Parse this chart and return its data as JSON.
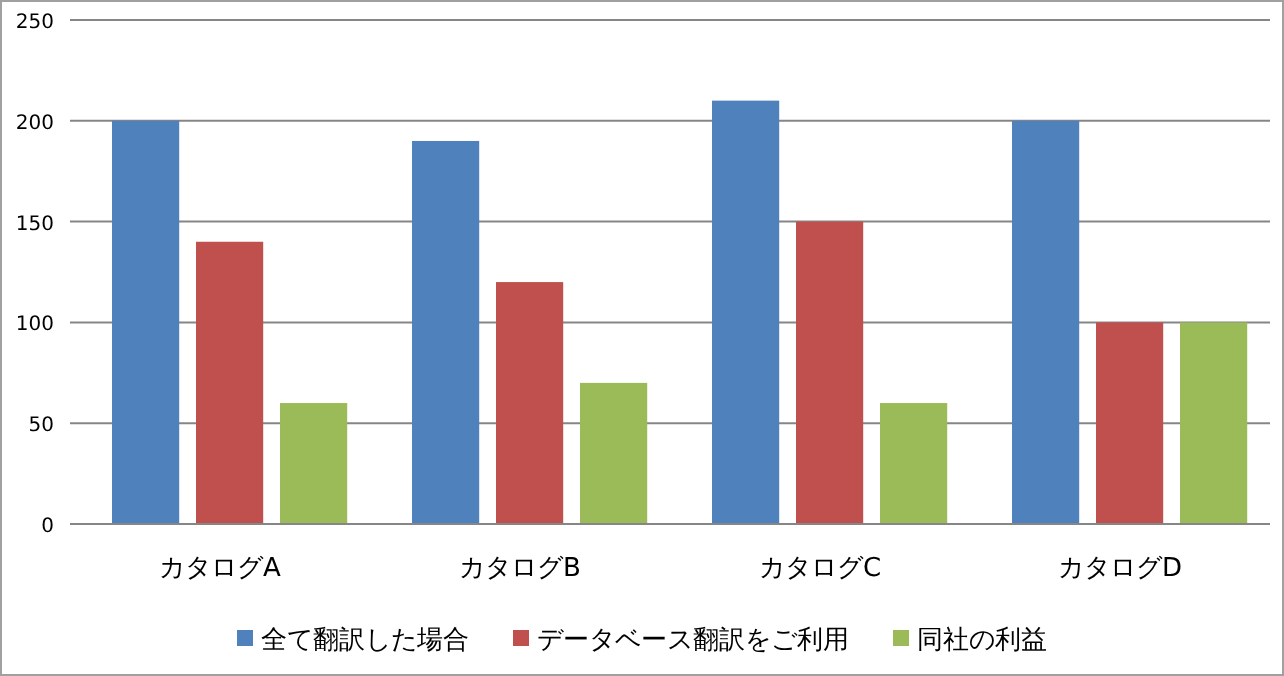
{
  "chart_data": {
    "type": "bar",
    "categories": [
      "カタログA",
      "カタログB",
      "カタログC",
      "カタログD"
    ],
    "series": [
      {
        "name": "全て翻訳した場合",
        "color": "#4f81bd",
        "values": [
          200,
          190,
          210,
          200
        ]
      },
      {
        "name": "データベース翻訳をご利用",
        "color": "#c0504d",
        "values": [
          140,
          120,
          150,
          100
        ]
      },
      {
        "name": "同社の利益",
        "color": "#9bbb59",
        "values": [
          60,
          70,
          60,
          100
        ]
      }
    ],
    "ylim": [
      0,
      250
    ],
    "yticks": [
      0,
      50,
      100,
      150,
      200,
      250
    ],
    "grid": "y",
    "legend": "bottom"
  }
}
